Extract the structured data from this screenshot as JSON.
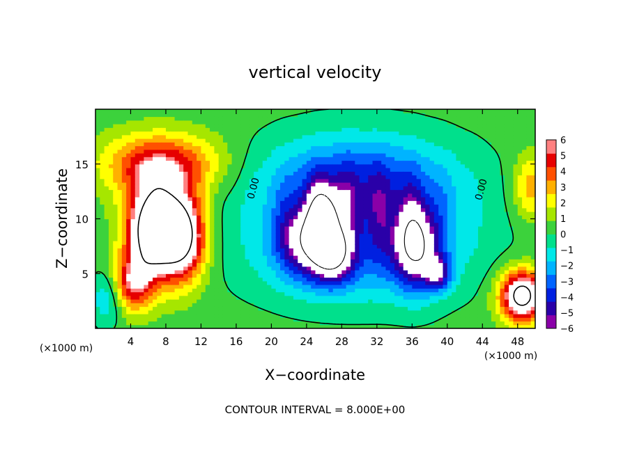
{
  "chart_data": {
    "type": "heatmap",
    "title": "vertical velocity",
    "xlabel": "X−coordinate",
    "ylabel": "Z−coordinate",
    "x_unit_label": "(×1000 m)",
    "x_unit_label_right": "(×1000 m)",
    "footer": "CONTOUR INTERVAL = 8.000E+00",
    "xlim": [
      0,
      50
    ],
    "ylim": [
      0,
      20
    ],
    "x_ticks": [
      4,
      8,
      12,
      16,
      20,
      24,
      28,
      32,
      36,
      40,
      44,
      48
    ],
    "x_tick_labels": [
      "4",
      "8",
      "12",
      "16",
      "20",
      "24",
      "28",
      "32",
      "36",
      "40",
      "44",
      "48"
    ],
    "y_ticks": [
      5,
      10,
      15
    ],
    "y_tick_labels": [
      "5",
      "10",
      "15"
    ],
    "contour_labels": [
      {
        "text": "0.00",
        "x": 18.3,
        "y": 12.7
      },
      {
        "text": "0.00",
        "x": 44.2,
        "y": 12.6
      }
    ],
    "colorbar": {
      "min": -6,
      "max": 6,
      "ticks": [
        6,
        5,
        4,
        3,
        2,
        1,
        0,
        -1,
        -2,
        -3,
        -4,
        -5,
        -6
      ],
      "tick_labels": [
        "6",
        "5",
        "4",
        "3",
        "2",
        "1",
        "0",
        "−1",
        "−2",
        "−3",
        "−4",
        "−5",
        "−6"
      ]
    },
    "features": [
      {
        "kind": "updraft",
        "x": 6.5,
        "z": 9,
        "sx": 3.0,
        "sz": 4.2,
        "amp": 10
      },
      {
        "kind": "updraft",
        "x": 10,
        "z": 8.5,
        "sx": 2.6,
        "sz": 4.0,
        "amp": 8
      },
      {
        "kind": "updraft",
        "x": 7.5,
        "z": 15,
        "sx": 6.5,
        "sz": 2.8,
        "amp": 5
      },
      {
        "kind": "updraft",
        "x": 4,
        "z": 4,
        "sx": 2.5,
        "sz": 2.5,
        "amp": 5
      },
      {
        "kind": "updraft",
        "x": 48.5,
        "z": 3,
        "sx": 2.5,
        "sz": 2.3,
        "amp": 9
      },
      {
        "kind": "updraft",
        "x": 49.5,
        "z": 13,
        "sx": 2,
        "sz": 3,
        "amp": 3
      },
      {
        "kind": "downdraft",
        "x": 30,
        "z": 13,
        "sx": 11,
        "sz": 4.5,
        "amp": -5
      },
      {
        "kind": "downdraft",
        "x": 30,
        "z": 7,
        "sx": 12,
        "sz": 4.5,
        "amp": -3.5
      },
      {
        "kind": "downdraft",
        "x": 24,
        "z": 8,
        "sx": 3.2,
        "sz": 3.2,
        "amp": -5
      },
      {
        "kind": "downdraft",
        "x": 27,
        "z": 6.5,
        "sx": 2.2,
        "sz": 2.4,
        "amp": -5
      },
      {
        "kind": "downdraft",
        "x": 26,
        "z": 10.5,
        "sx": 1.8,
        "sz": 2.8,
        "amp": -4
      },
      {
        "kind": "downdraft",
        "x": 36.5,
        "z": 7.5,
        "sx": 2.6,
        "sz": 3.8,
        "amp": -6
      },
      {
        "kind": "downdraft",
        "x": 39,
        "z": 5,
        "sx": 1.5,
        "sz": 1.5,
        "amp": -4
      },
      {
        "kind": "downdraft",
        "x": 1.5,
        "z": 3,
        "sx": 1.8,
        "sz": 2.5,
        "amp": -3
      }
    ]
  }
}
